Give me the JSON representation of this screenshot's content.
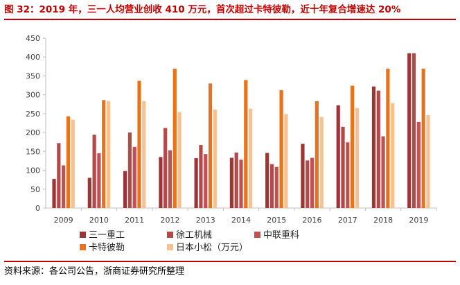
{
  "header": {
    "title": "图 32：2019 年，三一人均营业创收 410 万元，首次超过卡特彼勒，近十年复合增速达 20%"
  },
  "footer": {
    "source": "资料来源：各公司公告，浙商证券研究所整理"
  },
  "chart_data": {
    "type": "bar",
    "title": "2019 年，三一人均营业创收 410 万元，首次超过卡特彼勒，近十年复合增速达 20%",
    "categories": [
      "2009",
      "2010",
      "2011",
      "2012",
      "2013",
      "2014",
      "2015",
      "2016",
      "2017",
      "2018",
      "2019"
    ],
    "ylim": [
      0,
      450
    ],
    "yticks": [
      "0",
      "50",
      "100",
      "150",
      "200",
      "250",
      "300",
      "350",
      "400",
      "450"
    ],
    "xlabel": "",
    "ylabel": "",
    "grid": false,
    "legend_position": "bottom",
    "series": [
      {
        "name": "三一重工",
        "color": "#9e3535",
        "values": [
          77,
          80,
          98,
          135,
          132,
          133,
          146,
          170,
          272,
          322,
          410
        ]
      },
      {
        "name": "徐工机械",
        "color": "#b34a4a",
        "values": [
          172,
          194,
          200,
          212,
          167,
          147,
          116,
          126,
          215,
          311,
          410
        ]
      },
      {
        "name": "中联重科",
        "color": "#c25252",
        "values": [
          113,
          145,
          162,
          153,
          143,
          128,
          109,
          133,
          174,
          190,
          228
        ]
      },
      {
        "name": "卡特彼勒",
        "color": "#e8731d",
        "values": [
          243,
          286,
          337,
          369,
          330,
          339,
          312,
          283,
          324,
          369,
          369
        ]
      },
      {
        "name": "日本小松（万元）",
        "color": "#f8c190",
        "values": [
          234,
          283,
          283,
          254,
          261,
          263,
          249,
          241,
          265,
          278,
          246
        ]
      }
    ]
  }
}
